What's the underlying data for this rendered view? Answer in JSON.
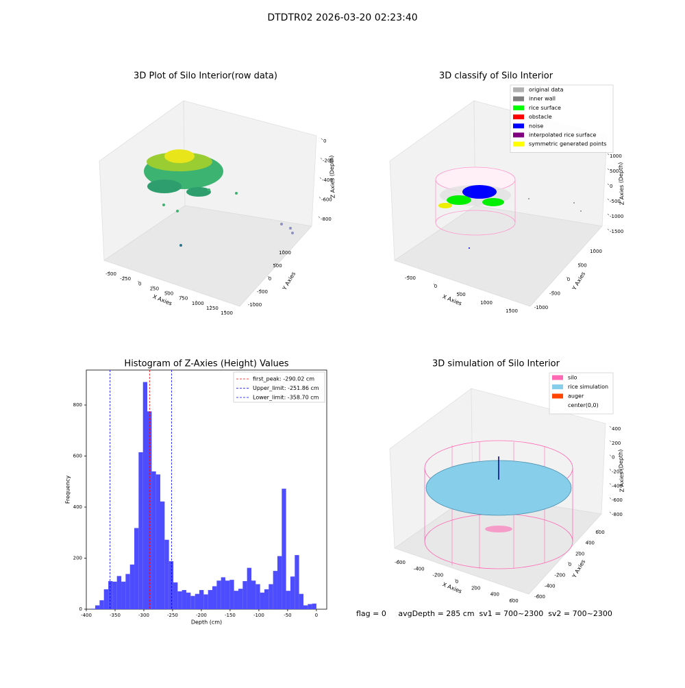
{
  "title": "DTDTR02 2026-03-20 02:23:40",
  "chart_data": [
    {
      "type": "scatter3d",
      "title": "3D Plot of Silo Interior(row data)",
      "xlabel": "X Axies",
      "ylabel": "Y Axies",
      "zlabel": "Z Axies (Depth)",
      "xticks": [
        -500,
        -250,
        0,
        250,
        500,
        750,
        1000,
        1250,
        1500
      ],
      "yticks": [
        -1000,
        -500,
        0,
        500,
        1000
      ],
      "zticks": [
        -800,
        -600,
        -400,
        -200,
        0
      ]
    },
    {
      "type": "scatter3d",
      "title": "3D classify of Silo Interior",
      "xlabel": "X Axies",
      "ylabel": "Y Axies",
      "zlabel": "Z Axies (Depth)",
      "xticks": [
        -500,
        0,
        500,
        1000,
        1500
      ],
      "yticks": [
        -1000,
        -500,
        0,
        500,
        1000
      ],
      "zticks": [
        -1500,
        -1000,
        -500,
        0,
        500,
        1000
      ],
      "legend": "upper right",
      "series": [
        {
          "name": "original data",
          "color": "#b0b0b0"
        },
        {
          "name": "inner wall",
          "color": "#808080"
        },
        {
          "name": "rice surface",
          "color": "#00ff00"
        },
        {
          "name": "obstacle",
          "color": "#ff0000"
        },
        {
          "name": "noise",
          "color": "#0000ff"
        },
        {
          "name": "interpolated rice surface",
          "color": "#800080"
        },
        {
          "name": "symmetric generated points",
          "color": "#ffff00"
        }
      ]
    },
    {
      "type": "histogram",
      "title": "Histogram of Z-Axies (Height) Values",
      "xlabel": "Depth (cm)",
      "ylabel": "Frequency",
      "color": "#4d4dff",
      "bins": [
        -392.0,
        -384.5,
        -376.9,
        -369.4,
        -361.8,
        -354.3,
        -346.8,
        -339.2,
        -331.7,
        -324.1,
        -316.6,
        -309.1,
        -301.5,
        -294.0,
        -286.4,
        -278.9,
        -271.4,
        -263.8,
        -256.3,
        -248.7,
        -241.2,
        -233.7,
        -226.1,
        -218.6,
        -211.0,
        -203.5,
        -196.0,
        -188.4,
        -180.9,
        -173.3,
        -165.8,
        -158.3,
        -150.7,
        -143.2,
        -135.6,
        -128.1,
        -120.6,
        -113.0,
        -105.5,
        -97.9,
        -90.4,
        -82.9,
        -75.3,
        -67.8,
        -60.2,
        -52.7,
        -45.2,
        -37.6,
        -30.1,
        -22.5,
        -15.0,
        -7.5,
        0.0
      ],
      "values": [
        2,
        15,
        35,
        78,
        110,
        108,
        130,
        108,
        138,
        175,
        318,
        615,
        890,
        775,
        540,
        528,
        422,
        272,
        188,
        105,
        70,
        75,
        65,
        52,
        60,
        75,
        58,
        75,
        90,
        112,
        125,
        112,
        115,
        72,
        80,
        110,
        162,
        112,
        98,
        65,
        78,
        98,
        150,
        208,
        472,
        72,
        128,
        212,
        60,
        15,
        20,
        22
      ],
      "xlim": [
        -400,
        18
      ],
      "ylim": [
        0,
        937
      ],
      "xticks": [
        -400,
        -350,
        -300,
        -250,
        -200,
        -150,
        -100,
        -50,
        0
      ],
      "yticks": [
        0,
        200,
        400,
        600,
        800
      ],
      "legend": "upper right",
      "vlines": [
        {
          "name": "first_peak: -290.02 cm",
          "value": -290.02,
          "color": "#ff0000"
        },
        {
          "name": "Upper_limit: -251.86 cm",
          "value": -251.86,
          "color": "#0000ff"
        },
        {
          "name": "Lower_limit: -358.70 cm",
          "value": -358.7,
          "color": "#0000ff"
        }
      ]
    },
    {
      "type": "scatter3d",
      "title": "3D simulation of Silo Interior",
      "xlabel": "X Axies",
      "ylabel": "Y Axies",
      "zlabel": "Z Axies (Depth)",
      "xticks": [
        -600,
        -400,
        -200,
        0,
        200,
        400,
        600
      ],
      "yticks": [
        -600,
        -400,
        -200,
        0,
        200,
        400,
        600
      ],
      "zticks": [
        -800,
        -600,
        -400,
        -200,
        0,
        200,
        400
      ],
      "legend": "upper right",
      "series": [
        {
          "name": "silo",
          "color": "#ff69b4"
        },
        {
          "name": "rice simulation",
          "color": "#87ceeb"
        },
        {
          "name": "auger",
          "color": "#ff4500"
        },
        {
          "name": "center(0,0)",
          "color": "#ffffff"
        }
      ],
      "annotation": "flag = 0     avgDepth = 285 cm  sv1 = 700~2300  sv2 = 700~2300"
    }
  ]
}
